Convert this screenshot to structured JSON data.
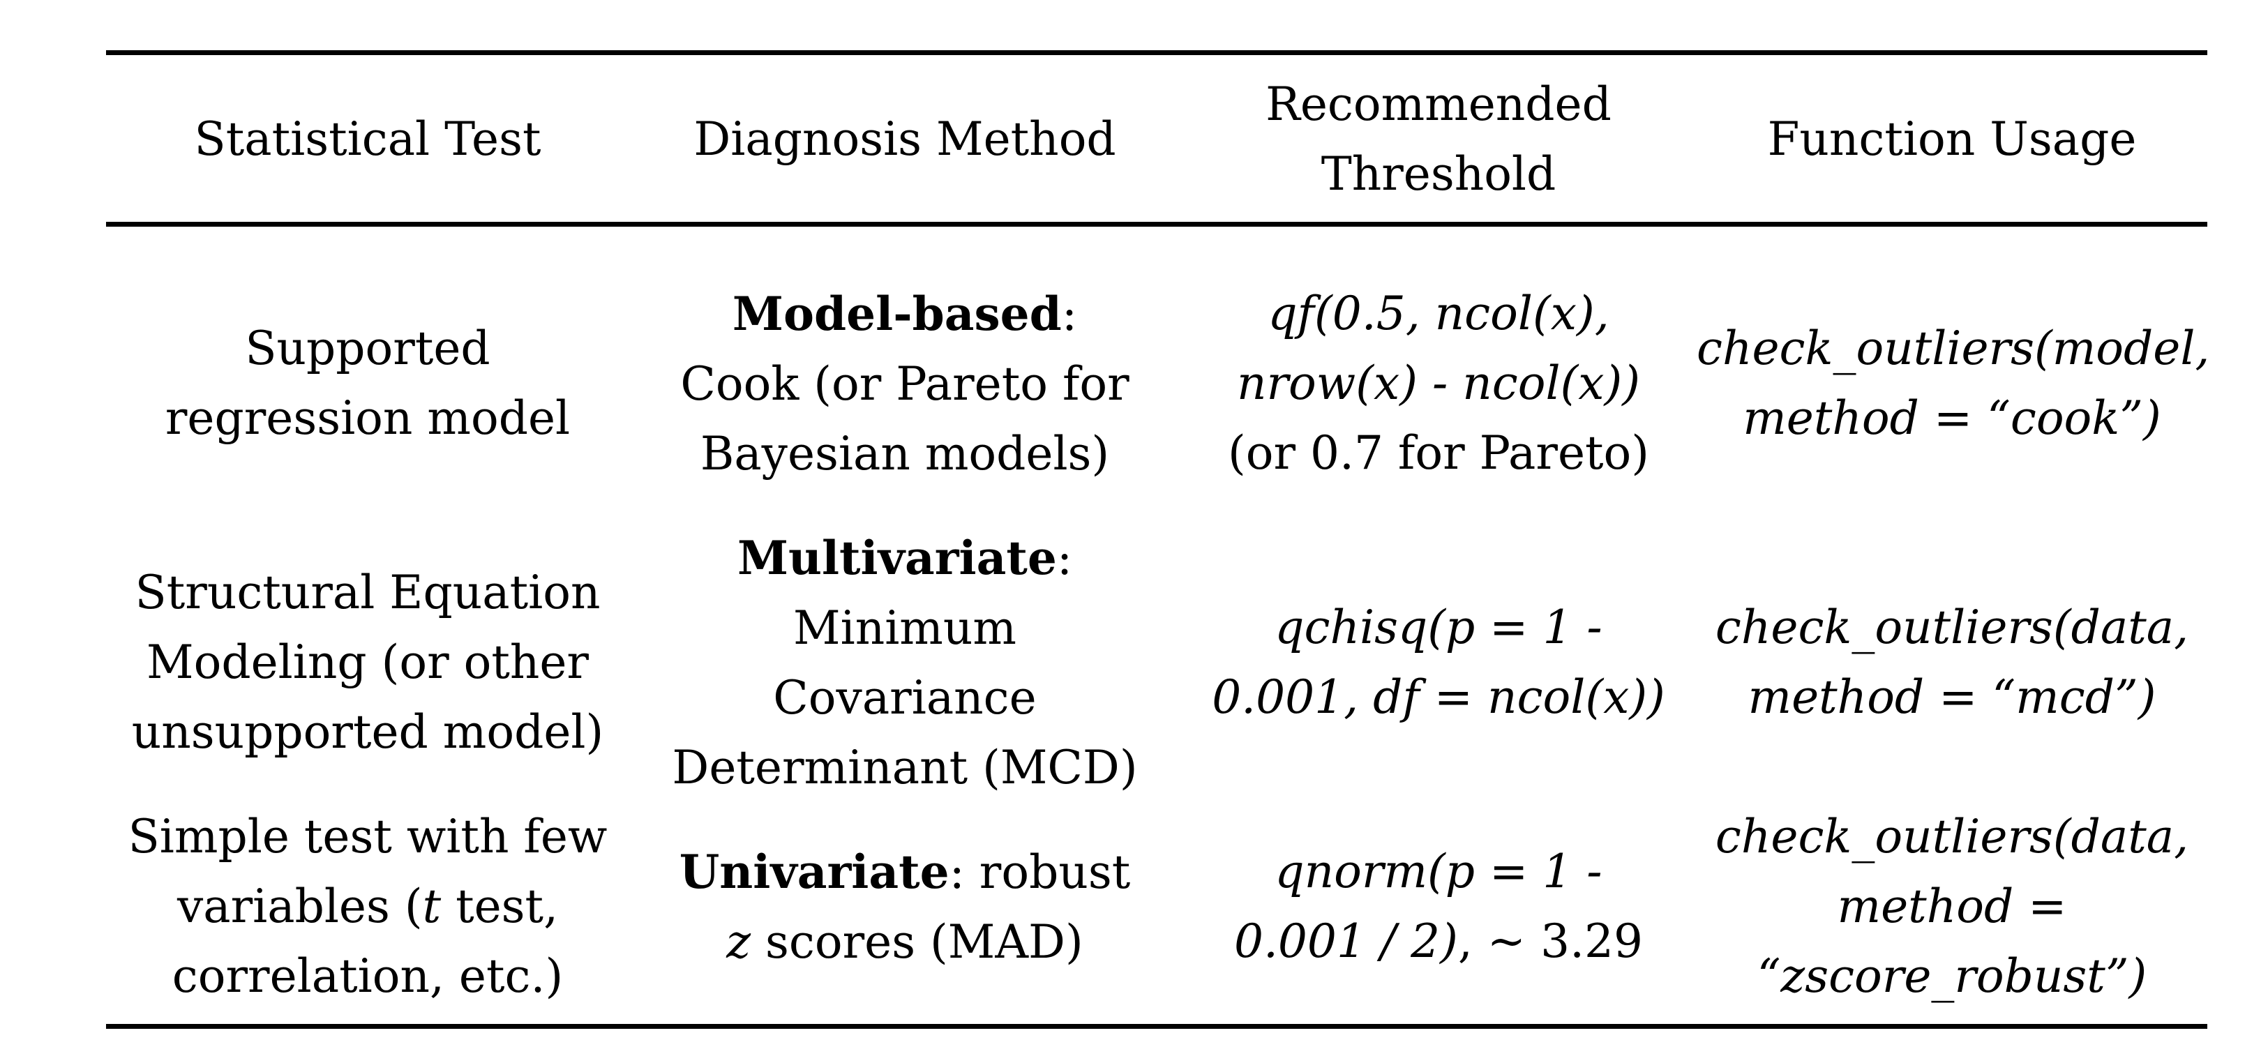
{
  "headers": {
    "col1": "Statistical Test",
    "col2": "Diagnosis Method",
    "col3_line1": "Recommended",
    "col3_line2": "Threshold",
    "col4": "Function Usage"
  },
  "rows": [
    {
      "test": [
        "Supported",
        "regression model"
      ],
      "method_bold": "Model-based",
      "method_colon": ":",
      "method_lines": [
        "Cook (or Pareto for",
        "Bayesian models)"
      ],
      "threshold_it": [
        "qf(0.5, ncol(x),",
        "nrow(x) - ncol(x))"
      ],
      "threshold_plain": "(or 0.7 for Pareto)",
      "usage": [
        "check_outliers(model,",
        "method = “cook”)"
      ]
    },
    {
      "test": [
        "Structural Equation",
        "Modeling (or other",
        "unsupported model)"
      ],
      "method_bold": "Multivariate",
      "method_colon": ":",
      "method_lines": [
        "Minimum",
        "Covariance",
        "Determinant (MCD)"
      ],
      "threshold_it": [
        "qchisq(p = 1 -",
        "0.001, df = ncol(x))"
      ],
      "usage": [
        "check_outliers(data,",
        "method = “mcd”)"
      ]
    },
    {
      "test_line1": "Simple test with few",
      "test_line2_pre": "variables (",
      "test_line2_it": "t",
      "test_line2_post": " test,",
      "test_line3": "correlation, etc.)",
      "method_bold": "Univariate",
      "method_rest": ": robust",
      "method_line2_it": "z",
      "method_line2_rest": " scores (MAD)",
      "threshold_it_line1": "qnorm(p = 1 -",
      "threshold_it_line2": "0.001 / 2)",
      "threshold_plain_line2": ", ~ 3.29",
      "usage": [
        "check_outliers(data,",
        "method =",
        "“zscore_robust”)"
      ]
    }
  ]
}
